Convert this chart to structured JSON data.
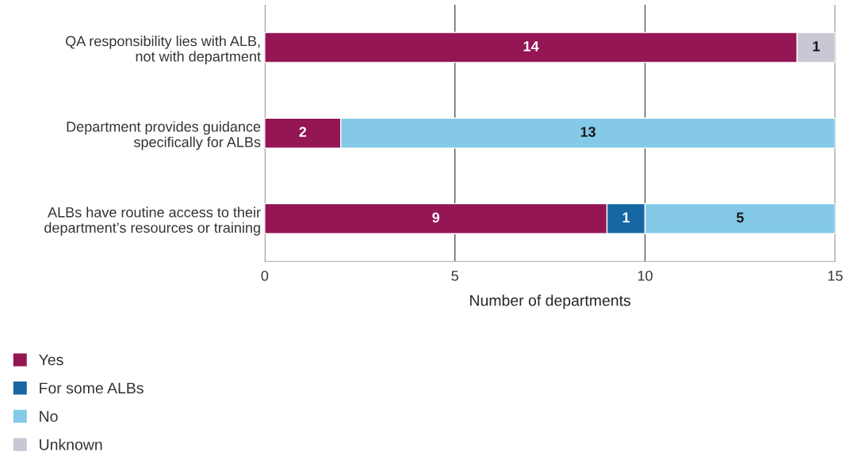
{
  "chart_data": {
    "type": "bar",
    "orientation": "horizontal",
    "stacked": true,
    "categories": [
      "QA responsibility lies with ALB,\nnot with department",
      "Department provides guidance\nspecifically for ALBs",
      "ALBs have routine access to their\ndepartment’s resources or training"
    ],
    "series": [
      {
        "name": "Yes",
        "color": "#951654",
        "values": [
          14,
          2,
          9
        ]
      },
      {
        "name": "For some ALBs",
        "color": "#1767a3",
        "values": [
          null,
          null,
          1
        ]
      },
      {
        "name": "No",
        "color": "#84c9e8",
        "values": [
          null,
          13,
          5
        ]
      },
      {
        "name": "Unknown",
        "color": "#c9c7d4",
        "values": [
          1,
          null,
          null
        ]
      }
    ],
    "xlabel": "Number of departments",
    "xlim": [
      0,
      15
    ],
    "xticks": [
      0,
      5,
      10,
      15
    ],
    "grid": "x",
    "legend": "bottom left",
    "data_labels": true
  }
}
